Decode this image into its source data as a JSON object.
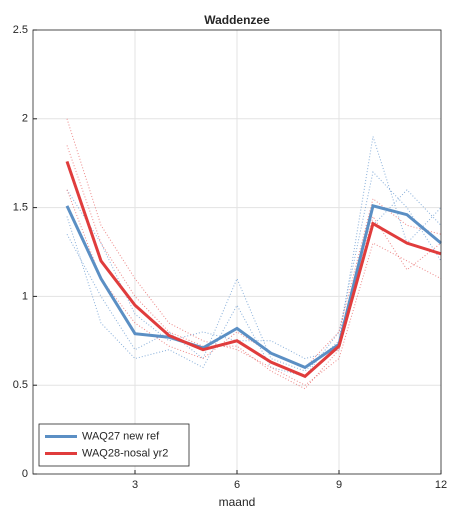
{
  "chart_data": {
    "type": "line",
    "title": "Waddenzee",
    "xlabel": "maand",
    "x": [
      1,
      2,
      3,
      4,
      5,
      6,
      7,
      8,
      9,
      10,
      11,
      12
    ],
    "xlim": [
      0,
      12
    ],
    "xticks": [
      3,
      6,
      9,
      12
    ],
    "ylim": [
      0,
      2.5
    ],
    "yticks": [
      0,
      0.5,
      1,
      1.5,
      2,
      2.5
    ],
    "grid": true,
    "legend": "lower-left",
    "series": [
      {
        "color": "#6a9bd1",
        "style": "dotted",
        "values": [
          1.45,
          0.85,
          0.65,
          0.7,
          0.6,
          0.95,
          0.6,
          0.55,
          0.8,
          1.7,
          1.5,
          1.2
        ]
      },
      {
        "color": "#6a9bd1",
        "style": "dotted",
        "values": [
          1.6,
          1.3,
          0.9,
          0.75,
          0.8,
          0.75,
          0.75,
          0.65,
          0.7,
          1.4,
          1.6,
          1.4
        ]
      },
      {
        "color": "#6a9bd1",
        "style": "dotted",
        "values": [
          1.35,
          1.0,
          0.7,
          0.8,
          0.65,
          1.1,
          0.65,
          0.58,
          0.75,
          1.9,
          1.3,
          1.5
        ]
      },
      {
        "color": "#e86a6a",
        "style": "dotted",
        "values": [
          2.0,
          1.4,
          1.1,
          0.85,
          0.75,
          0.7,
          0.6,
          0.5,
          0.65,
          1.3,
          1.2,
          1.1
        ]
      },
      {
        "color": "#e86a6a",
        "style": "dotted",
        "values": [
          1.6,
          1.1,
          0.85,
          0.72,
          0.65,
          0.8,
          0.68,
          0.6,
          0.8,
          1.55,
          1.4,
          1.35
        ]
      },
      {
        "color": "#e86a6a",
        "style": "dotted",
        "values": [
          1.85,
          1.3,
          1.0,
          0.8,
          0.72,
          0.72,
          0.58,
          0.48,
          0.7,
          1.45,
          1.15,
          1.3
        ]
      },
      {
        "name": "WAQ27 new ref",
        "color": "#5b8fc4",
        "style": "solid",
        "values": [
          1.51,
          1.1,
          0.79,
          0.77,
          0.71,
          0.82,
          0.68,
          0.6,
          0.73,
          1.51,
          1.46,
          1.3
        ]
      },
      {
        "name": "WAQ28-nosal yr2",
        "color": "#e03c3c",
        "style": "solid",
        "values": [
          1.76,
          1.2,
          0.95,
          0.78,
          0.7,
          0.75,
          0.63,
          0.55,
          0.72,
          1.41,
          1.3,
          1.24
        ]
      }
    ]
  }
}
